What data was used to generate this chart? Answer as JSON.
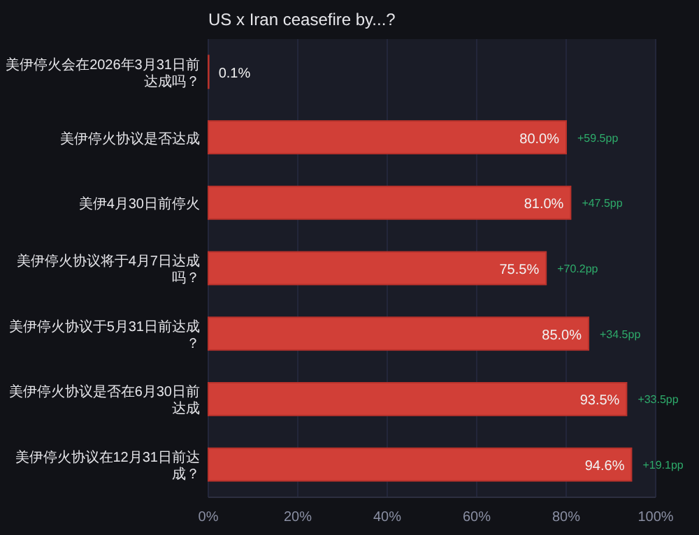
{
  "chart_data": {
    "type": "bar",
    "orientation": "horizontal",
    "title": "US x Iran ceasefire by...?",
    "categories": [
      "美伊停火会在2026年3月31日前达成吗？",
      "美伊停火协议是否达成",
      "美伊4月30日前停火",
      "美伊停火协议将于4月7日达成吗？",
      "美伊停火协议于5月31日前达成？",
      "美伊停火协议是否在6月30日前达成",
      "美伊停火协议在12月31日前达成？"
    ],
    "values": [
      0.1,
      80.0,
      81.0,
      75.5,
      85.0,
      93.5,
      94.6
    ],
    "value_labels": [
      "0.1%",
      "80.0%",
      "81.0%",
      "75.5%",
      "85.0%",
      "93.5%",
      "94.6%"
    ],
    "color": "#d13f37",
    "xlim": [
      0,
      100
    ],
    "xticks": [
      {
        "value": 0,
        "label": "0%"
      },
      {
        "value": 20,
        "label": "20%"
      },
      {
        "value": 40,
        "label": "40%"
      },
      {
        "value": 60,
        "label": "60%"
      },
      {
        "value": 80,
        "label": "80%"
      },
      {
        "value": 100,
        "label": "100%"
      }
    ],
    "grid": "x",
    "annotations": [
      {
        "text": "+59.5pp",
        "x": 80.0,
        "y": "美伊停火协议是否达成"
      },
      {
        "text": "+47.5pp",
        "x": 81.0,
        "y": "美伊4月30日前停火"
      },
      {
        "text": "+70.2pp",
        "x": 75.5,
        "y": "美伊停火协议将于4月7日达成吗？"
      },
      {
        "text": "+34.5pp",
        "x": 85.0,
        "y": "美伊停火协议于5月31日前达成？"
      },
      {
        "text": "+33.5pp",
        "x": 93.5,
        "y": "美伊停火协议是否在6月30日前达成"
      },
      {
        "text": "+19.1pp",
        "x": 94.6,
        "y": "美伊停火协议在12月31日前达成？"
      }
    ]
  }
}
